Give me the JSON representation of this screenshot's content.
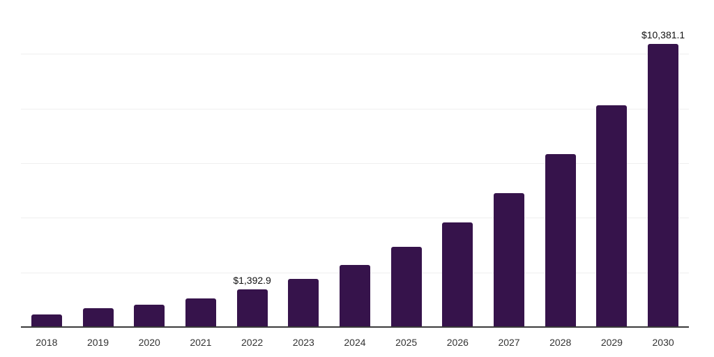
{
  "chart_data": {
    "type": "bar",
    "title": "",
    "xlabel": "",
    "ylabel": "",
    "categories": [
      "2018",
      "2019",
      "2020",
      "2021",
      "2022",
      "2023",
      "2024",
      "2025",
      "2026",
      "2027",
      "2028",
      "2029",
      "2030"
    ],
    "values": [
      485,
      710,
      850,
      1080,
      1392.9,
      1790,
      2300,
      2970,
      3845,
      4935,
      6355,
      8140,
      10381.1
    ],
    "point_labels": {
      "2022": "$1,392.9",
      "2030": "$10,381.1"
    },
    "ylim": [
      0,
      12000
    ],
    "gridline_step": 2000,
    "grid": "horizontal",
    "legend_position": "none",
    "colors": {
      "bar": "#36134b",
      "gridline": "#efefef",
      "axis_line": "#3a3a3a",
      "tick_label": "#333333",
      "point_label": "#111111",
      "background": "#ffffff"
    }
  }
}
